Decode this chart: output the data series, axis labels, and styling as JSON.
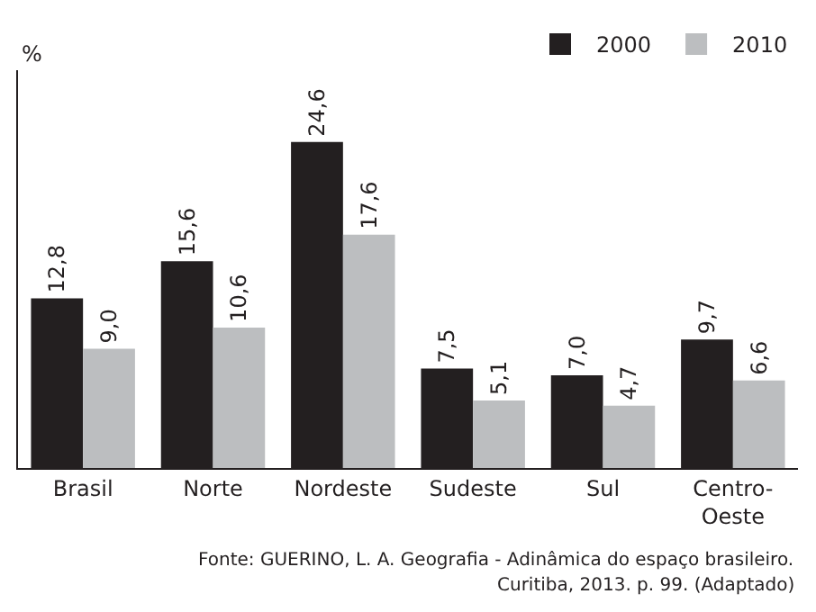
{
  "chart_data": {
    "type": "bar",
    "ylabel": "%",
    "categories": [
      "Brasil",
      "Norte",
      "Nordeste",
      "Sudeste",
      "Sul",
      "Centro-Oeste"
    ],
    "series": [
      {
        "name": "2000",
        "color": "#231f20",
        "values": [
          12.8,
          15.6,
          24.6,
          7.5,
          7.0,
          9.7
        ],
        "value_labels": [
          "12,8",
          "15,6",
          "24,6",
          "7,5",
          "7,0",
          "9,7"
        ]
      },
      {
        "name": "2010",
        "color": "#bcbec0",
        "values": [
          9.0,
          10.6,
          17.6,
          5.1,
          4.7,
          6.6
        ],
        "value_labels": [
          "9,0",
          "10,6",
          "17,6",
          "5,1",
          "4,7",
          "6,6"
        ]
      }
    ],
    "legend": "top right",
    "annotations": [
      "Fonte: GUERINO, L. A. Geografia - Adinâmica do espaço brasileiro.",
      "Curitiba, 2013. p. 99. (Adaptado)"
    ]
  }
}
